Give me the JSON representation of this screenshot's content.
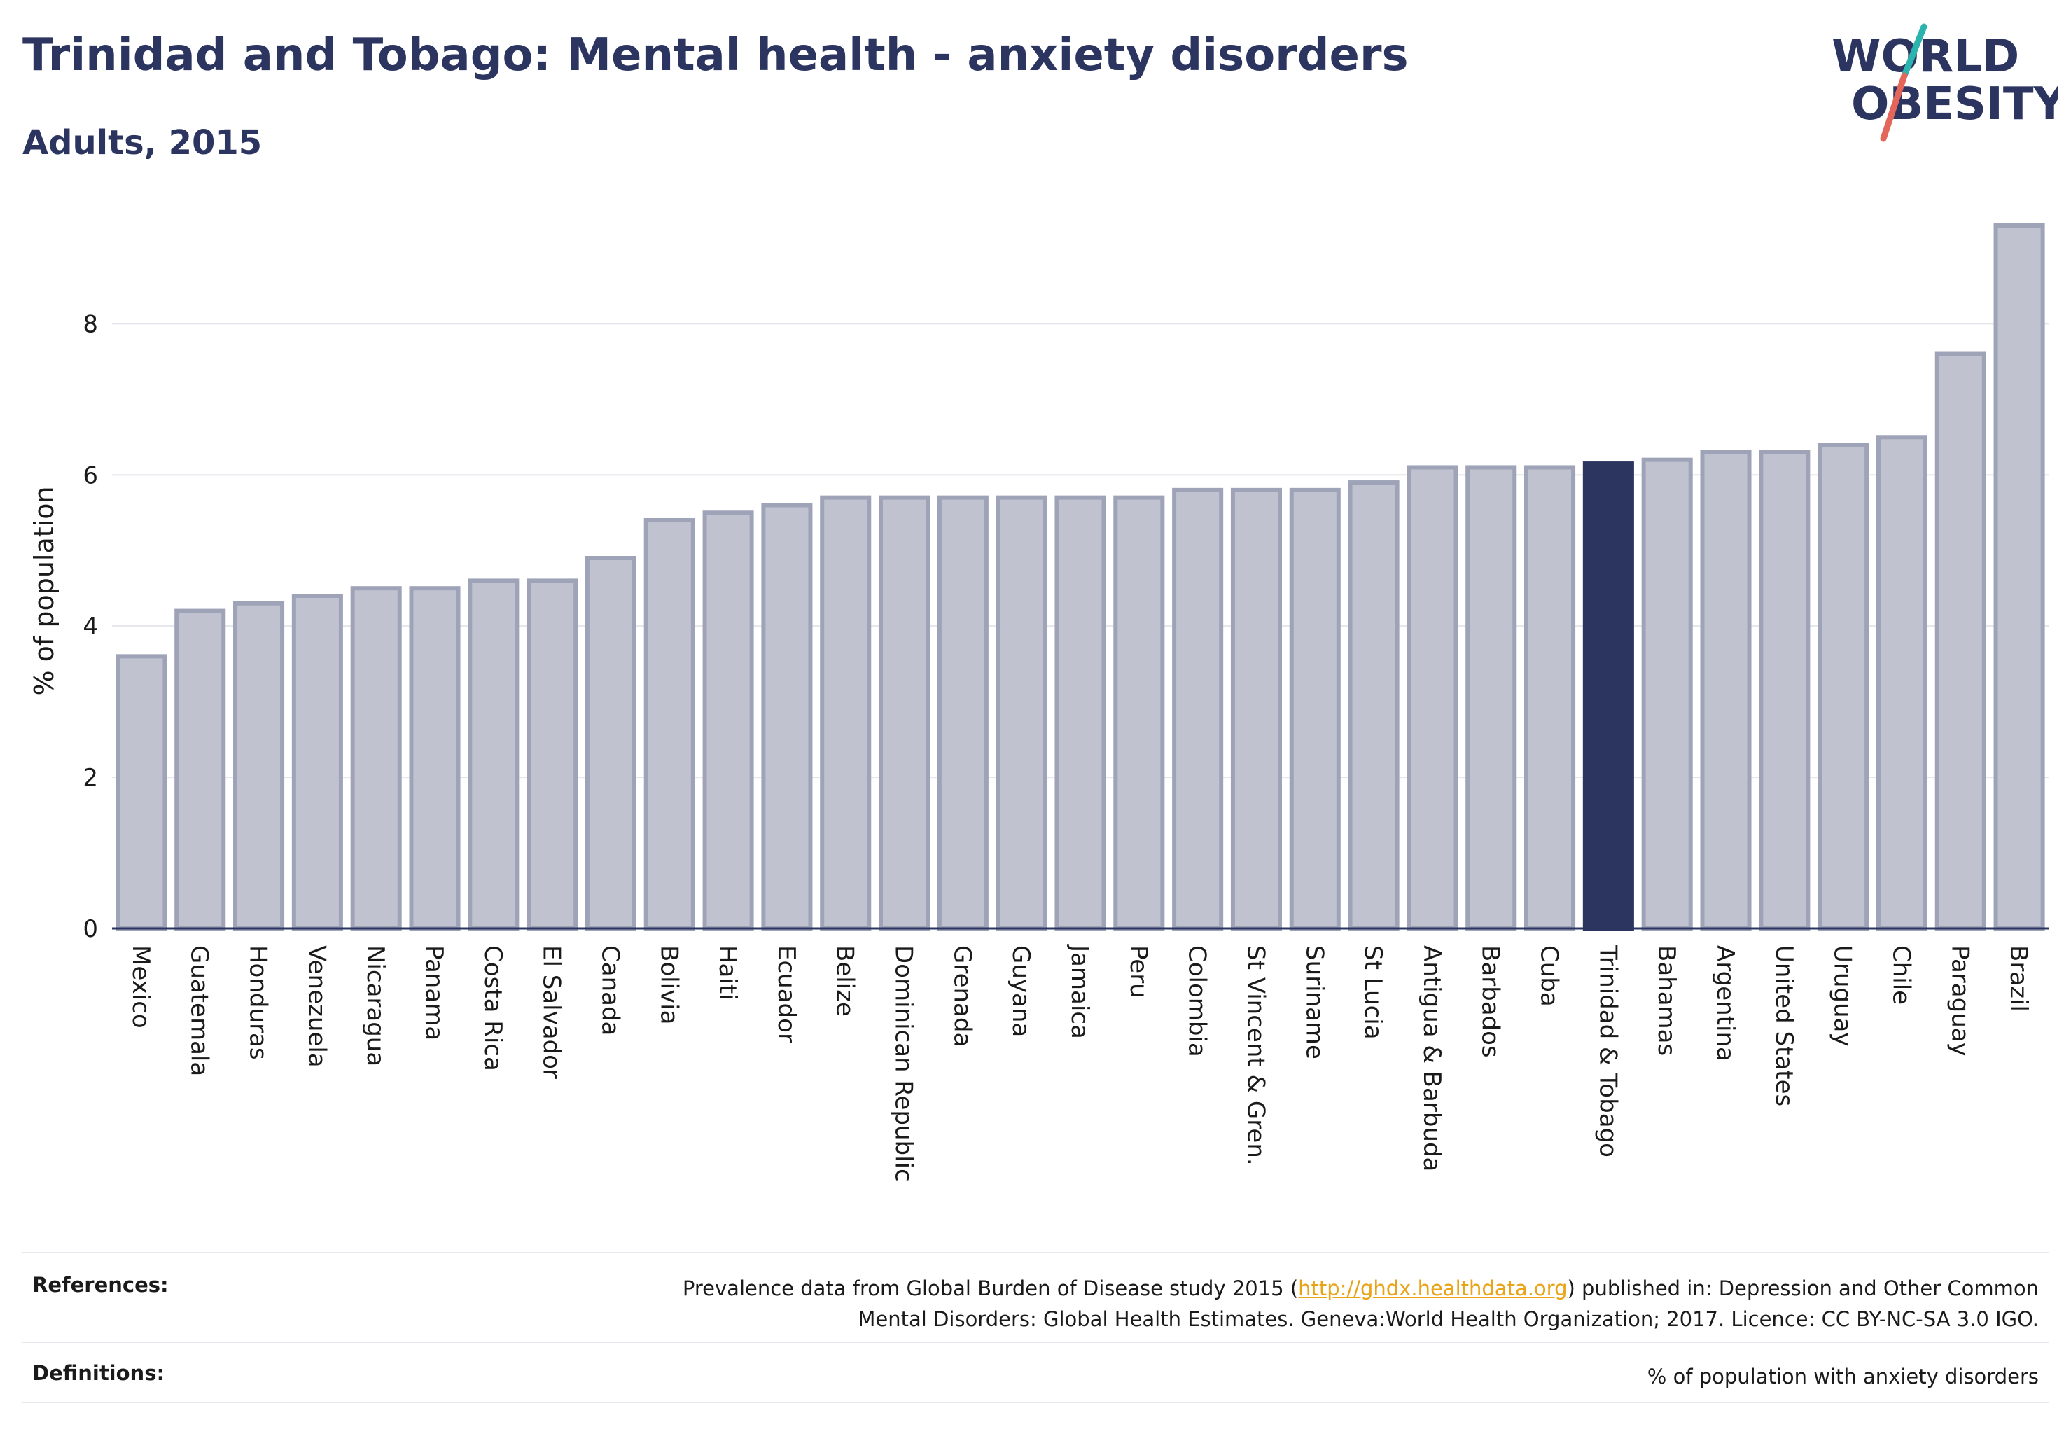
{
  "header": {
    "title": "Trinidad and Tobago: Mental health - anxiety disorders",
    "subtitle": "Adults, 2015"
  },
  "logo": {
    "line1": "WORLD",
    "line2": "OBESITY",
    "colors": {
      "text": "#2b3560",
      "slash_top": "#2bb3b0",
      "slash_bottom": "#e4665a"
    }
  },
  "chart_data": {
    "type": "bar",
    "ylabel": "% of population",
    "ylim": [
      0,
      9.3
    ],
    "yticks": [
      0,
      2,
      4,
      6,
      8
    ],
    "grid": true,
    "highlight": "Trinidad & Tobago",
    "colors": {
      "bar": "#c0c3cf",
      "bar_edge": "#9ea3b8",
      "highlight": "#2b3560"
    },
    "categories": [
      "Mexico",
      "Guatemala",
      "Honduras",
      "Venezuela",
      "Nicaragua",
      "Panama",
      "Costa Rica",
      "El Salvador",
      "Canada",
      "Bolivia",
      "Haiti",
      "Ecuador",
      "Belize",
      "Dominican Republic",
      "Grenada",
      "Guyana",
      "Jamaica",
      "Peru",
      "Colombia",
      "St Vincent & Gren.",
      "Suriname",
      "St Lucia",
      "Antigua & Barbuda",
      "Barbados",
      "Cuba",
      "Trinidad & Tobago",
      "Bahamas",
      "Argentina",
      "United States",
      "Uruguay",
      "Chile",
      "Paraguay",
      "Brazil"
    ],
    "values": [
      3.6,
      4.2,
      4.3,
      4.4,
      4.5,
      4.5,
      4.6,
      4.6,
      4.9,
      5.4,
      5.5,
      5.6,
      5.7,
      5.7,
      5.7,
      5.7,
      5.7,
      5.7,
      5.8,
      5.8,
      5.8,
      5.9,
      6.1,
      6.1,
      6.1,
      6.15,
      6.2,
      6.3,
      6.3,
      6.4,
      6.5,
      7.6,
      9.3
    ]
  },
  "footer": {
    "references_label": "References:",
    "references_text_before": "Prevalence data from Global Burden of Disease study 2015 (",
    "references_link": "http://ghdx.healthdata.org",
    "references_text_after": ") published in: Depression and Other Common",
    "references_line2": "Mental Disorders: Global Health Estimates. Geneva:World Health Organization; 2017. Licence: CC BY-NC-SA 3.0 IGO.",
    "definitions_label": "Definitions:",
    "definitions_text": "% of population with anxiety disorders"
  }
}
